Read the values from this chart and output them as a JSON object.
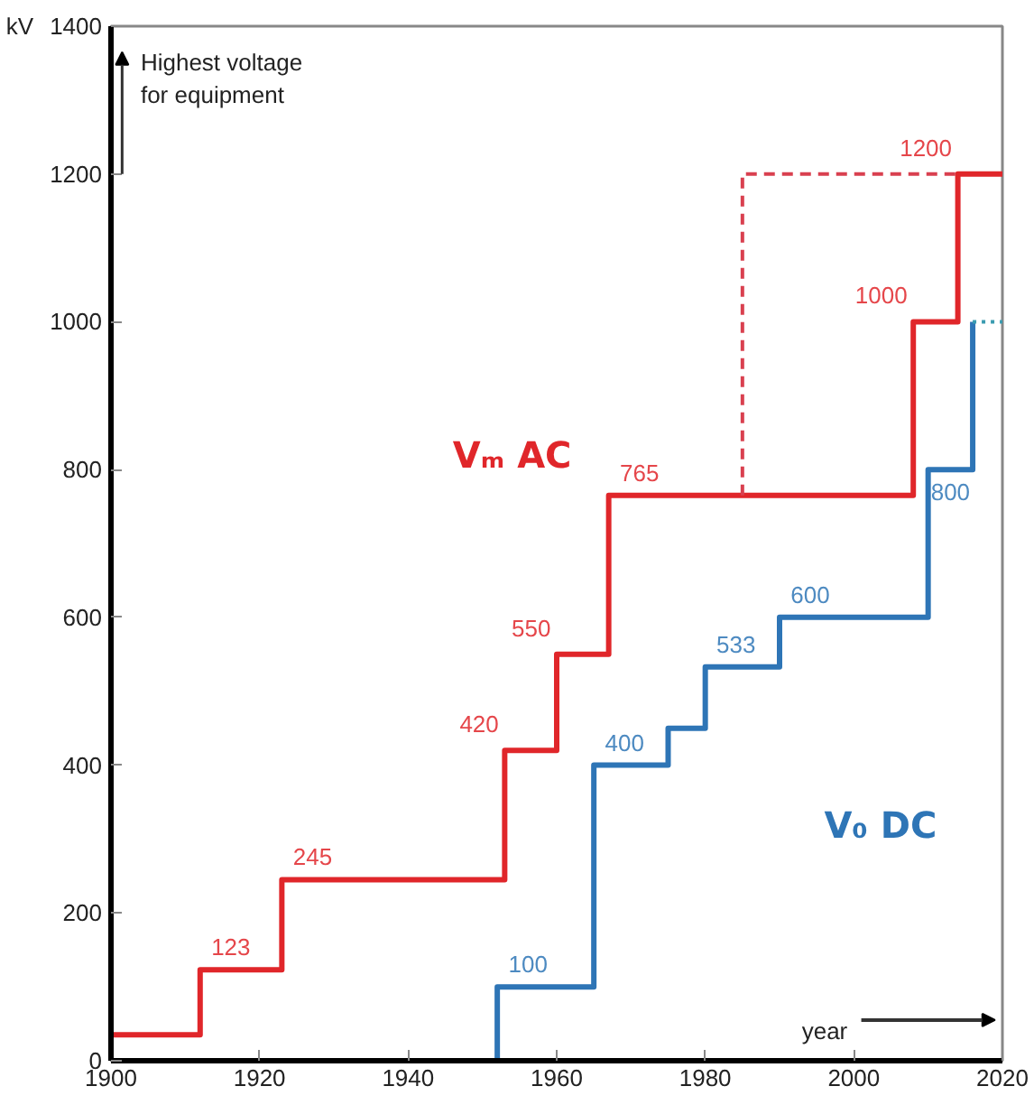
{
  "chart_data": {
    "type": "step",
    "ylabel": "kV",
    "xlim": [
      1900,
      2020
    ],
    "ylim": [
      0,
      1400
    ],
    "xticks": [
      1900,
      1920,
      1940,
      1960,
      1980,
      2000,
      2020
    ],
    "yticks": [
      0,
      200,
      400,
      600,
      800,
      1000,
      1200,
      1400
    ],
    "grid": false,
    "legend": false,
    "marker": "none",
    "annotations": [
      "Highest voltage\nfor equipment",
      "year"
    ],
    "series": [
      {
        "name": "Vₘ AC",
        "color": "#e0262a",
        "x": [
          1900,
          1912,
          1923,
          1953,
          1960,
          1967,
          2008,
          2014,
          2020
        ],
        "values": [
          35,
          123,
          245,
          420,
          550,
          765,
          1000,
          1200,
          1200
        ],
        "value_labels": [
          null,
          "123",
          "245",
          "420",
          "550",
          "765",
          "1000",
          "1200",
          null
        ]
      },
      {
        "type": "line",
        "color": "#d9404f",
        "line_style": "dashed",
        "x": [
          1985,
          1985,
          2014
        ],
        "values": [
          765,
          1200,
          1200
        ]
      },
      {
        "name": "V₀ DC",
        "color": "#2e75b6",
        "x": [
          1952,
          1952,
          1965,
          1975,
          1980,
          1990,
          2010,
          2016
        ],
        "values": [
          0,
          100,
          400,
          450,
          533,
          600,
          800,
          1000
        ],
        "value_labels": [
          null,
          "100",
          "400",
          null,
          "533",
          "600",
          "800",
          null
        ]
      },
      {
        "type": "line",
        "color": "#3a9bb0",
        "line_style": "dotted",
        "x": [
          2016,
          2020
        ],
        "values": [
          1000,
          1000
        ]
      }
    ]
  }
}
